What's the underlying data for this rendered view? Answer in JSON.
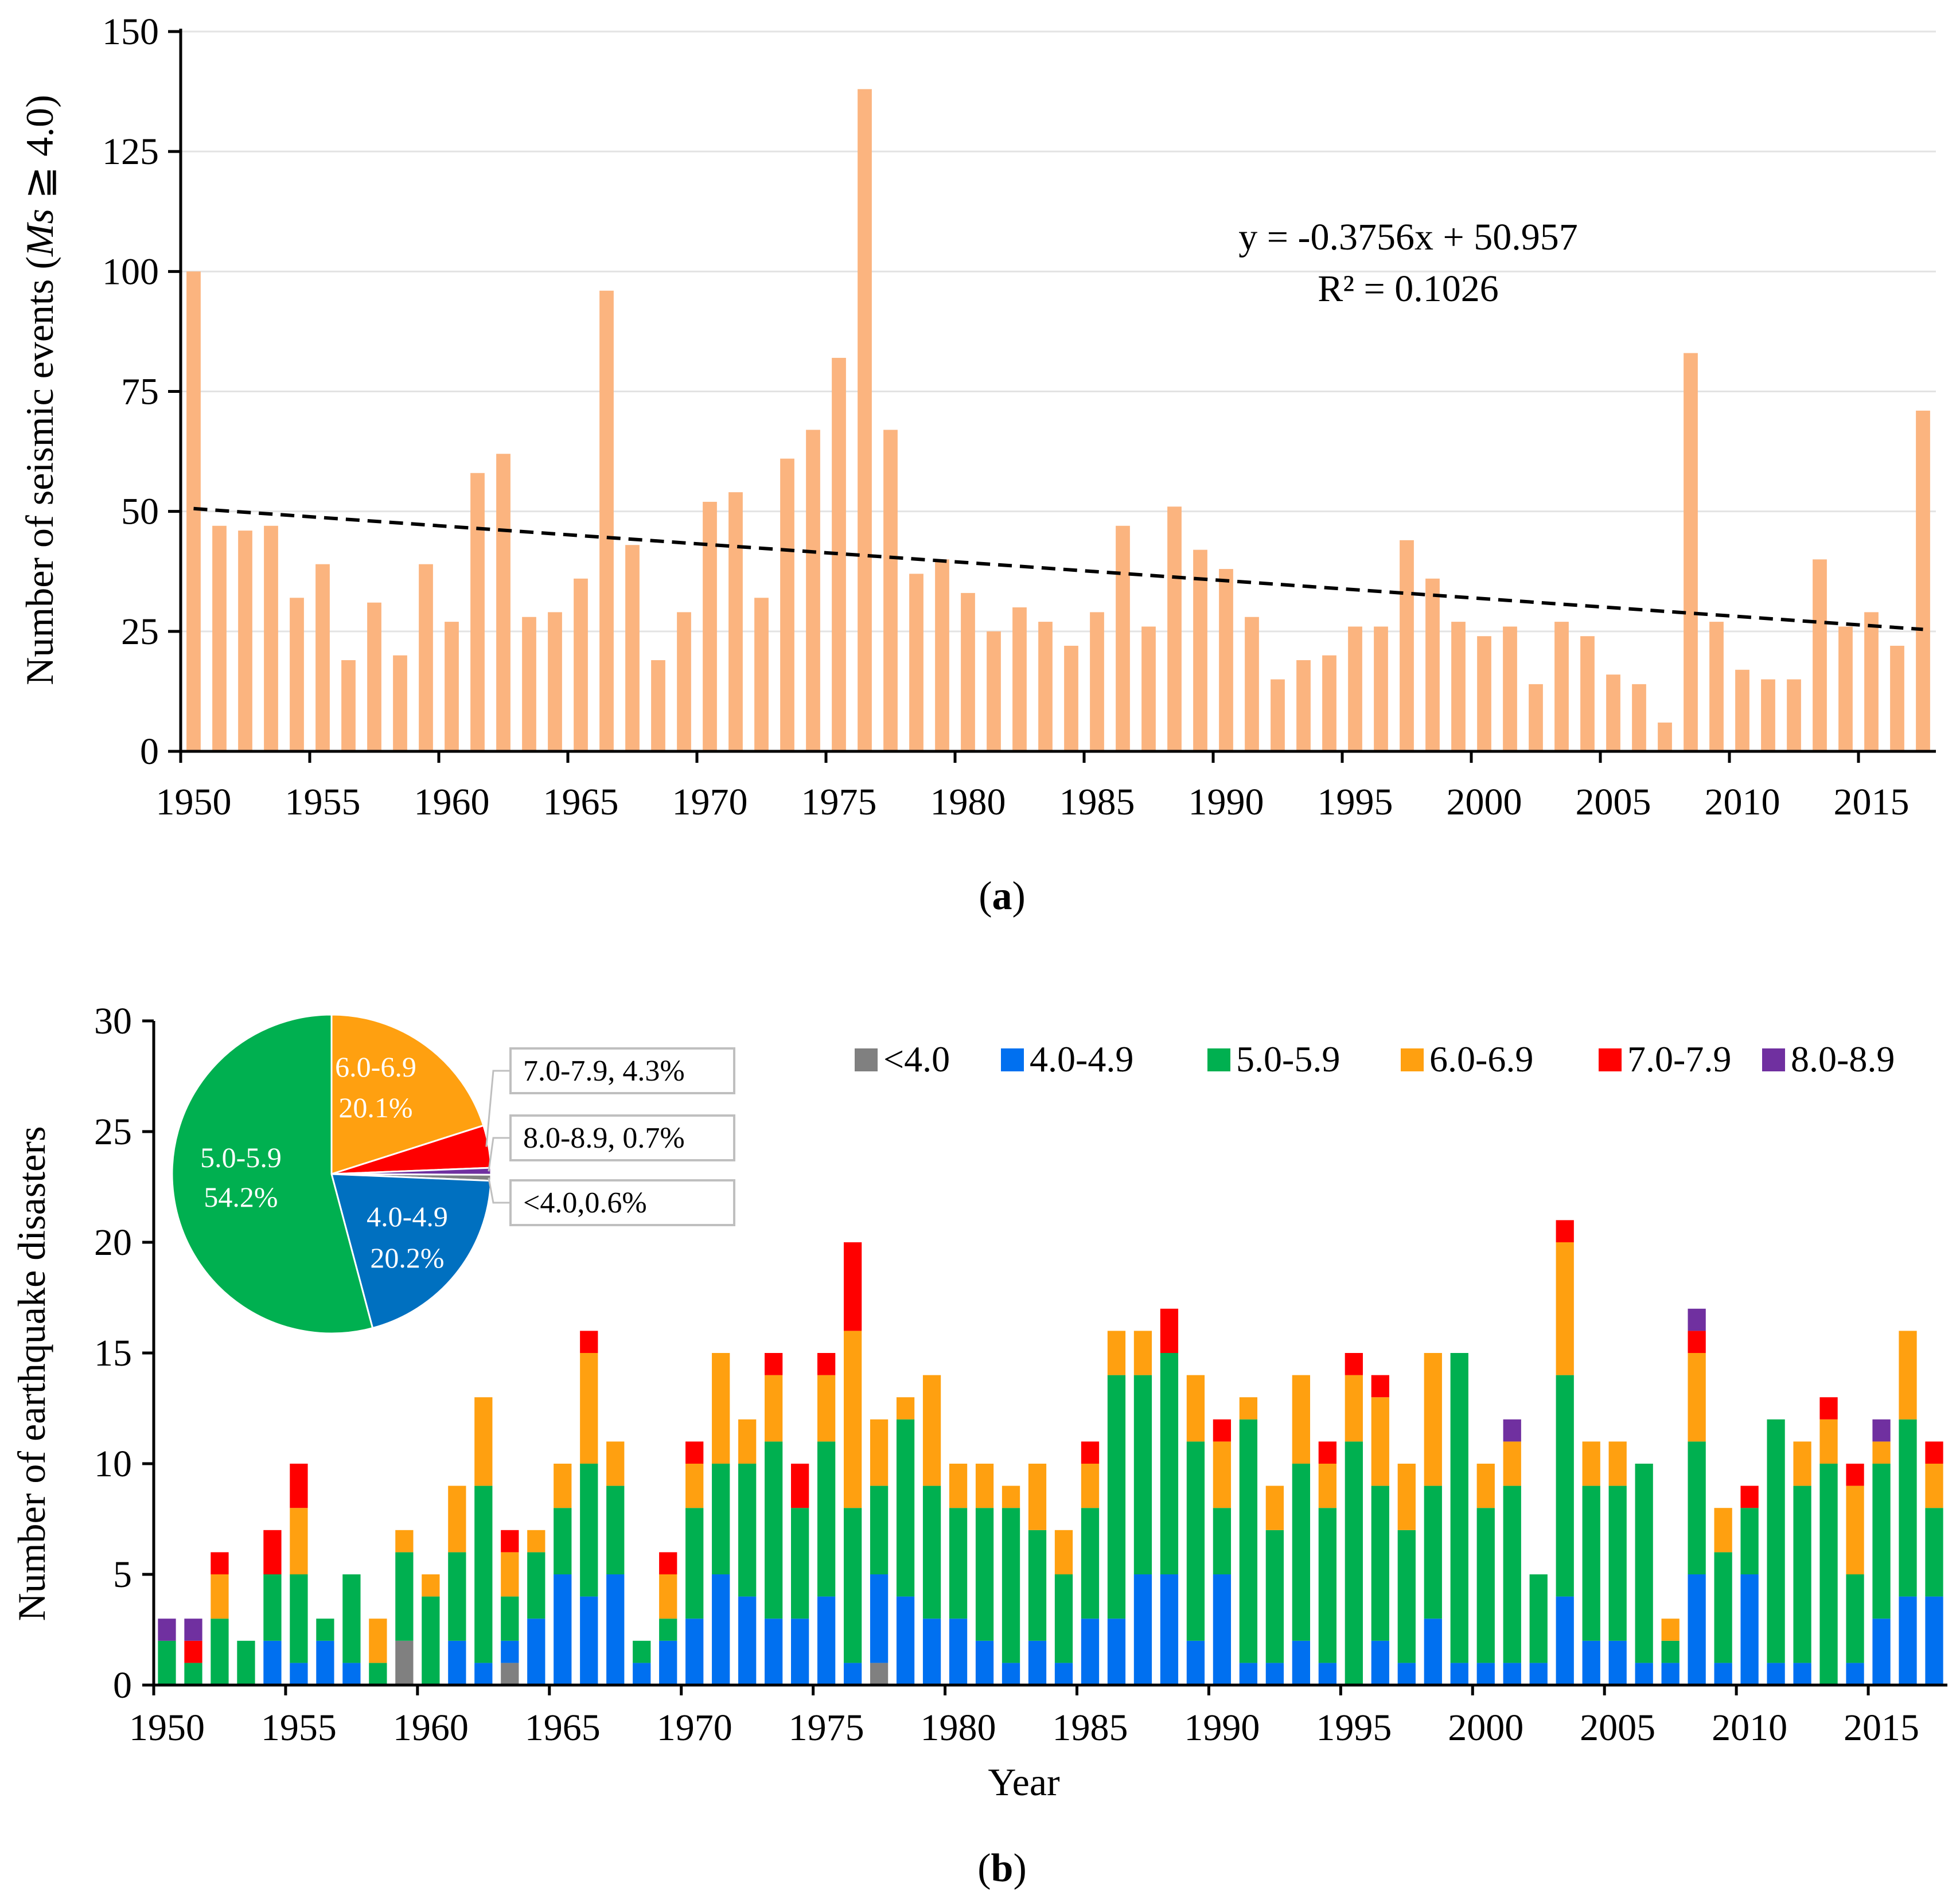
{
  "chart_data": [
    {
      "id": "a",
      "type": "bar",
      "panel_label": "a",
      "ylabel_prefix": "Number of seismic events (",
      "ylabel_italic": "Ms",
      "ylabel_suffix": " ≧ 4.0)",
      "xlabel": "",
      "ylim": [
        0,
        150
      ],
      "yticks": [
        "0",
        "25",
        "50",
        "75",
        "100",
        "125",
        "150"
      ],
      "xticks": [
        "1950",
        "1955",
        "1960",
        "1965",
        "1970",
        "1975",
        "1980",
        "1985",
        "1990",
        "1995",
        "2000",
        "2005",
        "2010",
        "2015"
      ],
      "years": [
        1950,
        1951,
        1952,
        1953,
        1954,
        1955,
        1956,
        1957,
        1958,
        1959,
        1960,
        1961,
        1962,
        1963,
        1964,
        1965,
        1966,
        1967,
        1968,
        1969,
        1970,
        1971,
        1972,
        1973,
        1974,
        1975,
        1976,
        1977,
        1978,
        1979,
        1980,
        1981,
        1982,
        1983,
        1984,
        1985,
        1986,
        1987,
        1988,
        1989,
        1990,
        1991,
        1992,
        1993,
        1994,
        1995,
        1996,
        1997,
        1998,
        1999,
        2000,
        2001,
        2002,
        2003,
        2004,
        2005,
        2006,
        2007,
        2008,
        2009,
        2010,
        2011,
        2012,
        2013,
        2014,
        2015,
        2016,
        2017
      ],
      "values": [
        100,
        47,
        46,
        47,
        32,
        39,
        19,
        31,
        20,
        39,
        27,
        58,
        62,
        28,
        29,
        36,
        96,
        43,
        19,
        29,
        52,
        54,
        32,
        61,
        67,
        82,
        138,
        67,
        37,
        40,
        33,
        25,
        30,
        27,
        22,
        29,
        47,
        26,
        51,
        42,
        38,
        28,
        15,
        19,
        20,
        26,
        26,
        44,
        36,
        27,
        24,
        26,
        14,
        27,
        24,
        16,
        14,
        6,
        83,
        27,
        17,
        15,
        15,
        40,
        26,
        29,
        22,
        71
      ],
      "bar_color": "#FBB47F",
      "trendline": {
        "slope": -0.3756,
        "intercept": 50.957,
        "color": "#000000"
      },
      "equation": "y = -0.3756x + 50.957",
      "r2_label": "R² = 0.1026"
    },
    {
      "id": "b",
      "type": "stacked_bar",
      "panel_label": "b",
      "ylabel": "Number of earthquake disasters",
      "xlabel": "Year",
      "ylim": [
        0,
        30
      ],
      "yticks": [
        "0",
        "5",
        "10",
        "15",
        "20",
        "25",
        "30"
      ],
      "xticks": [
        "1950",
        "1955",
        "1960",
        "1965",
        "1970",
        "1975",
        "1980",
        "1985",
        "1990",
        "1995",
        "2000",
        "2005",
        "2010",
        "2015"
      ],
      "years": [
        1950,
        1951,
        1952,
        1953,
        1954,
        1955,
        1956,
        1957,
        1958,
        1959,
        1960,
        1961,
        1962,
        1963,
        1964,
        1965,
        1966,
        1967,
        1968,
        1969,
        1970,
        1971,
        1972,
        1973,
        1974,
        1975,
        1976,
        1977,
        1978,
        1979,
        1980,
        1981,
        1982,
        1983,
        1984,
        1985,
        1986,
        1987,
        1988,
        1989,
        1990,
        1991,
        1992,
        1993,
        1994,
        1995,
        1996,
        1997,
        1998,
        1999,
        2000,
        2001,
        2002,
        2003,
        2004,
        2005,
        2006,
        2007,
        2008,
        2009,
        2010,
        2011,
        2012,
        2013,
        2014,
        2015,
        2016,
        2017
      ],
      "legend": [
        "<4.0",
        "4.0-4.9",
        "5.0-5.9",
        "6.0-6.9",
        "7.0-7.9",
        "8.0-8.9"
      ],
      "series": [
        {
          "name": "<4.0",
          "color": "#808080",
          "values": [
            0,
            0,
            0,
            0,
            0,
            0,
            0,
            0,
            0,
            2,
            0,
            0,
            0,
            1,
            0,
            0,
            0,
            0,
            0,
            0,
            0,
            0,
            0,
            0,
            0,
            0,
            0,
            1,
            0,
            0,
            0,
            0,
            0,
            0,
            0,
            0,
            0,
            0,
            0,
            0,
            0,
            0,
            0,
            0,
            0,
            0,
            0,
            0,
            0,
            0,
            0,
            0,
            0,
            0,
            0,
            0,
            0,
            0,
            0,
            0,
            0,
            0,
            0,
            0,
            0,
            0,
            0,
            0
          ]
        },
        {
          "name": "4.0-4.9",
          "color": "#0070F0",
          "values": [
            0,
            0,
            0,
            0,
            2,
            1,
            2,
            1,
            0,
            0,
            0,
            2,
            1,
            1,
            3,
            5,
            4,
            5,
            1,
            2,
            3,
            5,
            4,
            3,
            3,
            4,
            1,
            4,
            4,
            3,
            3,
            2,
            1,
            2,
            1,
            3,
            3,
            5,
            5,
            2,
            5,
            1,
            1,
            2,
            1,
            0,
            2,
            1,
            3,
            1,
            1,
            1,
            1,
            4,
            2,
            2,
            1,
            1,
            5,
            1,
            5,
            1,
            1,
            0,
            1,
            3,
            4,
            4
          ]
        },
        {
          "name": "5.0-5.9",
          "color": "#00B050",
          "values": [
            2,
            1,
            3,
            2,
            3,
            4,
            1,
            4,
            1,
            4,
            4,
            4,
            8,
            2,
            3,
            3,
            6,
            4,
            1,
            1,
            5,
            5,
            6,
            8,
            5,
            7,
            7,
            4,
            8,
            6,
            5,
            6,
            7,
            5,
            4,
            5,
            11,
            9,
            10,
            9,
            3,
            11,
            6,
            8,
            7,
            11,
            7,
            6,
            6,
            14,
            7,
            8,
            4,
            10,
            7,
            7,
            9,
            1,
            6,
            5,
            3,
            11,
            8,
            10,
            4,
            7,
            8,
            4
          ]
        },
        {
          "name": "6.0-6.9",
          "color": "#FFA010",
          "values": [
            0,
            0,
            2,
            0,
            0,
            3,
            0,
            0,
            2,
            1,
            1,
            3,
            4,
            2,
            1,
            2,
            5,
            2,
            0,
            2,
            2,
            5,
            2,
            3,
            0,
            3,
            8,
            3,
            1,
            5,
            2,
            2,
            1,
            3,
            2,
            2,
            2,
            2,
            0,
            3,
            3,
            1,
            2,
            4,
            2,
            3,
            4,
            3,
            6,
            0,
            2,
            2,
            0,
            6,
            2,
            2,
            0,
            1,
            4,
            2,
            0,
            0,
            2,
            2,
            4,
            1,
            4,
            2
          ]
        },
        {
          "name": "7.0-7.9",
          "color": "#FF0000",
          "values": [
            0,
            1,
            1,
            0,
            2,
            2,
            0,
            0,
            0,
            0,
            0,
            0,
            0,
            1,
            0,
            0,
            1,
            0,
            0,
            1,
            1,
            0,
            0,
            1,
            2,
            1,
            4,
            0,
            0,
            0,
            0,
            0,
            0,
            0,
            0,
            1,
            0,
            0,
            2,
            0,
            1,
            0,
            0,
            0,
            1,
            1,
            1,
            0,
            0,
            0,
            0,
            0,
            0,
            1,
            0,
            0,
            0,
            0,
            1,
            0,
            1,
            0,
            0,
            1,
            1,
            0,
            0,
            1
          ]
        },
        {
          "name": "8.0-8.9",
          "color": "#7030A0",
          "values": [
            1,
            1,
            0,
            0,
            0,
            0,
            0,
            0,
            0,
            0,
            0,
            0,
            0,
            0,
            0,
            0,
            0,
            0,
            0,
            0,
            0,
            0,
            0,
            0,
            0,
            0,
            0,
            0,
            0,
            0,
            0,
            0,
            0,
            0,
            0,
            0,
            0,
            0,
            0,
            0,
            0,
            0,
            0,
            0,
            0,
            0,
            0,
            0,
            0,
            0,
            0,
            1,
            0,
            0,
            0,
            0,
            0,
            0,
            1,
            0,
            0,
            0,
            0,
            0,
            0,
            1,
            0,
            0
          ]
        }
      ],
      "inset_pie": {
        "slices": [
          {
            "name": "6.0-6.9",
            "value": 20.1,
            "color": "#FFA010",
            "label": "6.0-6.9",
            "pct_label": "20.1%"
          },
          {
            "name": "7.0-7.9",
            "value": 4.3,
            "color": "#FF0000",
            "callout": "7.0-7.9, 4.3%"
          },
          {
            "name": "8.0-8.9",
            "value": 0.7,
            "color": "#7030A0",
            "callout": "8.0-8.9, 0.7%"
          },
          {
            "name": "<4.0",
            "value": 0.6,
            "color": "#808080",
            "callout": "<4.0,0.6%"
          },
          {
            "name": "4.0-4.9",
            "value": 20.2,
            "color": "#0070C0",
            "label": "4.0-4.9",
            "pct_label": "20.2%"
          },
          {
            "name": "5.0-5.9",
            "value": 54.2,
            "color": "#00B050",
            "label": "5.0-5.9",
            "pct_label": "54.2%"
          }
        ]
      }
    }
  ]
}
